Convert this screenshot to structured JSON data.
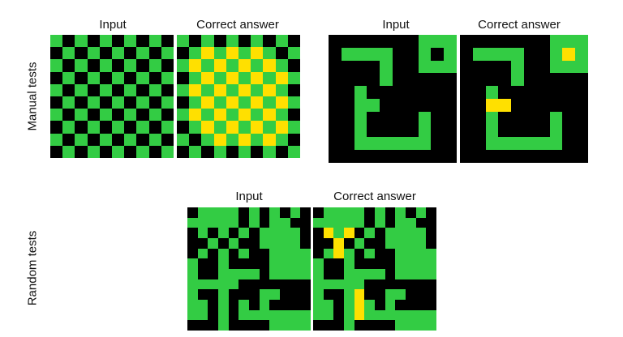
{
  "labels": {
    "input": "Input",
    "correct_answer": "Correct answer",
    "manual_tests": "Manual tests",
    "random_tests": "Random tests"
  },
  "colors": {
    "black": "#000000",
    "green": "#33cc44",
    "yellow": "#ffe000"
  },
  "grids": {
    "manual1_input": [
      "GBGBGBGBGB",
      "BGBGBGBGBG",
      "GBGBGBGBGB",
      "BGBGBGBGBG",
      "GBGBGBGBGB",
      "BGBGBGBGBG",
      "GBGBGBGBGB",
      "BGBGBGBGBG",
      "GBGBGBGBGB",
      "BGBGBGBGBG"
    ],
    "manual1_answer": [
      "GBGBGBGBGB",
      "BGYGYGYGBG",
      "GYGYGYGYGB",
      "BGYGYGYGYG",
      "GYGYGYGYGB",
      "BGYGYGYGYG",
      "GYGYGYGYGB",
      "BGYGYGYGYG",
      "GBGYGYGYGB",
      "BGBGBGBGBG"
    ],
    "manual2_input": [
      "BBBBBBBGGG",
      "BGGGGBBGBG",
      "BBBBGBBGGG",
      "BBBBGBBBBB",
      "BBGBBBBBBB",
      "BBGGBBBBBB",
      "BBGBBBBGBB",
      "BBGBBBBGBB",
      "BBGGGGGGBB",
      "BBBBBBBBBB"
    ],
    "manual2_answer": [
      "BBBBBBBGGG",
      "BGGGGBBGYG",
      "BBBBGBBGGG",
      "BBBBGBBBBB",
      "BBGBBBBBBB",
      "BBYYBBBBBB",
      "BBGBBBBGBB",
      "BBGBBBBGBB",
      "BBGGGGGGBB",
      "BBBBBBBBBB"
    ],
    "random_input": [
      "BGGGGBGBGBGB",
      "GGGGGBGBGGBB",
      "BGBGBGBGGGGB",
      "BBGBGBBGGGGB",
      "BGBGBGBBGGGG",
      "GBBGBBBBGGGG",
      "GBBGGGGBGGGG",
      "GGGGGBBBBBBB",
      "GBBGBBBGGBBB",
      "GGBGBGBGBBBB",
      "GGBGBGGGGGGG",
      "BBBGBBBBGGGG"
    ],
    "random_answer": [
      "BGGGGBGBGBGB",
      "GGGGGBGBGGBB",
      "BYGYBGBGGGGB",
      "BBYBGBBGGGGB",
      "BGYGBGBBGGGG",
      "GBBGBBBBGGGG",
      "GBBGGGGBGGGG",
      "GGGGGBBBBBBB",
      "GBBGYBBGGBBB",
      "GGBGYGBGBBBB",
      "GGBGYGGGGGGG",
      "BBBGBBBBGGGG"
    ]
  }
}
